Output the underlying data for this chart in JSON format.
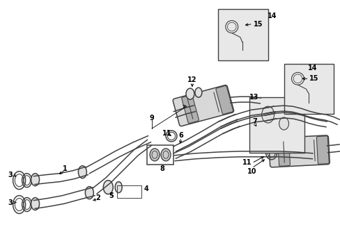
{
  "bg_color": "#ffffff",
  "line_color": "#404040",
  "label_color": "#000000",
  "fig_width": 4.89,
  "fig_height": 3.6,
  "dpi": 100,
  "pipe_lw": 1.1,
  "label_fs": 7.0
}
